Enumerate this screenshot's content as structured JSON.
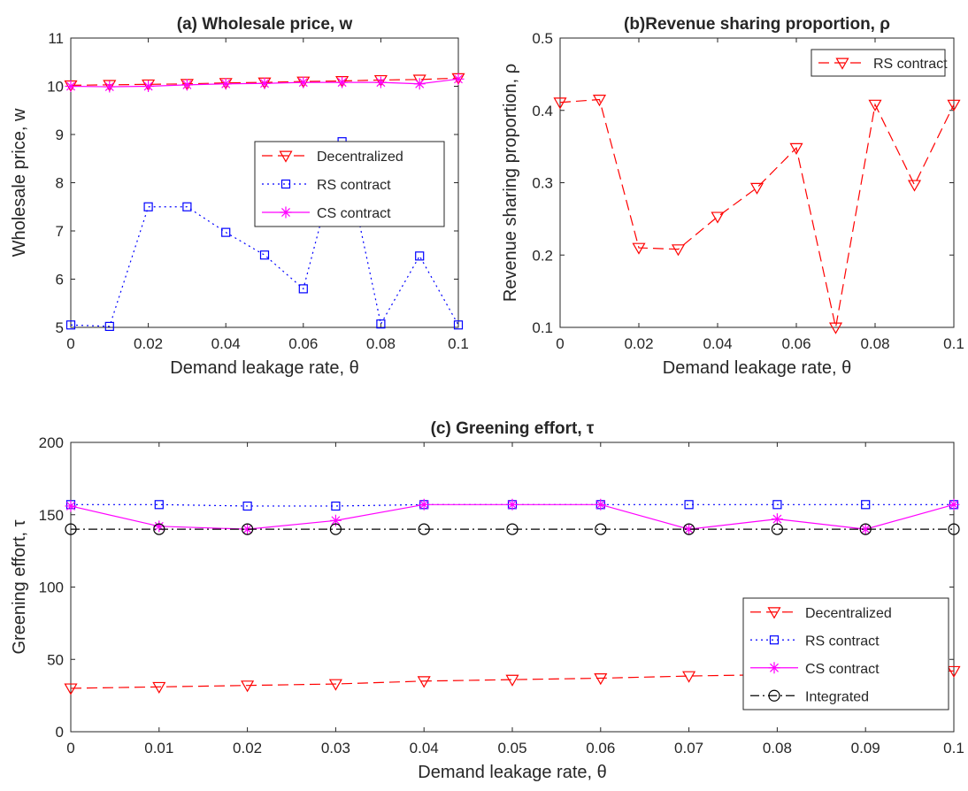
{
  "chart_data": [
    {
      "id": "a",
      "type": "line",
      "title": "(a) Wholesale price, w",
      "xlabel": "Demand leakage rate, θ",
      "ylabel": "Wholesale price, w",
      "xlim": [
        0,
        0.1
      ],
      "ylim": [
        5,
        11
      ],
      "xticks": [
        0,
        0.02,
        0.04,
        0.06,
        0.08,
        0.1
      ],
      "xtick_labels": [
        "0",
        "0.02",
        "0.04",
        "0.06",
        "0.08",
        "0.1"
      ],
      "yticks": [
        5,
        6,
        7,
        8,
        9,
        10,
        11
      ],
      "ytick_labels": [
        "5",
        "6",
        "7",
        "8",
        "9",
        "10",
        "11"
      ],
      "x": [
        0,
        0.01,
        0.02,
        0.03,
        0.04,
        0.05,
        0.06,
        0.07,
        0.08,
        0.09,
        0.1
      ],
      "legend_position": "center-right",
      "series": [
        {
          "name": "Decentralized",
          "color": "#ff0000",
          "dash": "dashed",
          "marker": "triangle-down",
          "values": [
            10.02,
            10.03,
            10.04,
            10.05,
            10.07,
            10.08,
            10.1,
            10.11,
            10.13,
            10.14,
            10.17
          ]
        },
        {
          "name": "RS contract",
          "color": "#0000ff",
          "dash": "dotted",
          "marker": "square",
          "values": [
            5.05,
            5.02,
            7.5,
            7.5,
            6.97,
            6.5,
            5.8,
            8.85,
            5.07,
            6.48,
            5.05
          ]
        },
        {
          "name": "CS contract",
          "color": "#ff00ff",
          "dash": "solid",
          "marker": "asterisk",
          "values": [
            10.0,
            9.99,
            10.0,
            10.03,
            10.05,
            10.06,
            10.08,
            10.08,
            10.08,
            10.05,
            10.15
          ]
        }
      ]
    },
    {
      "id": "b",
      "type": "line",
      "title": "(b)Revenue sharing proportion, ρ",
      "xlabel": "Demand leakage rate, θ",
      "ylabel": "Revenue sharing proportion, ρ",
      "xlim": [
        0,
        0.1
      ],
      "ylim": [
        0.1,
        0.5
      ],
      "xticks": [
        0,
        0.02,
        0.04,
        0.06,
        0.08,
        0.1
      ],
      "xtick_labels": [
        "0",
        "0.02",
        "0.04",
        "0.06",
        "0.08",
        "0.1"
      ],
      "yticks": [
        0.1,
        0.2,
        0.3,
        0.4,
        0.5
      ],
      "ytick_labels": [
        "0.1",
        "0.2",
        "0.3",
        "0.4",
        "0.5"
      ],
      "x": [
        0,
        0.01,
        0.02,
        0.03,
        0.04,
        0.05,
        0.06,
        0.07,
        0.08,
        0.09,
        0.1
      ],
      "legend_position": "top-right",
      "series": [
        {
          "name": "RS contract",
          "color": "#ff0000",
          "dash": "dashed",
          "marker": "triangle-down",
          "values": [
            0.411,
            0.415,
            0.21,
            0.208,
            0.253,
            0.293,
            0.348,
            0.1,
            0.408,
            0.297,
            0.408
          ]
        }
      ]
    },
    {
      "id": "c",
      "type": "line",
      "title": "(c) Greening effort, τ",
      "xlabel": "Demand leakage rate, θ",
      "ylabel": "Greening effort, τ",
      "xlim": [
        0,
        0.1
      ],
      "ylim": [
        0,
        200
      ],
      "xticks": [
        0,
        0.01,
        0.02,
        0.03,
        0.04,
        0.05,
        0.06,
        0.07,
        0.08,
        0.09,
        0.1
      ],
      "xtick_labels": [
        "0",
        "0.01",
        "0.02",
        "0.03",
        "0.04",
        "0.05",
        "0.06",
        "0.07",
        "0.08",
        "0.09",
        "0.1"
      ],
      "yticks": [
        0,
        50,
        100,
        150,
        200
      ],
      "ytick_labels": [
        "0",
        "50",
        "100",
        "150",
        "200"
      ],
      "x": [
        0,
        0.01,
        0.02,
        0.03,
        0.04,
        0.05,
        0.06,
        0.07,
        0.08,
        0.09,
        0.1
      ],
      "legend_position": "bottom-right",
      "series": [
        {
          "name": "Decentralized",
          "color": "#ff0000",
          "dash": "dashed",
          "marker": "triangle-down",
          "values": [
            30,
            31,
            32,
            33,
            35,
            36,
            37,
            38.5,
            39.5,
            40.5,
            42
          ]
        },
        {
          "name": "RS contract",
          "color": "#0000ff",
          "dash": "dotted",
          "marker": "square",
          "values": [
            157,
            157,
            156,
            156,
            157,
            157,
            157,
            157,
            157,
            157,
            157
          ]
        },
        {
          "name": "CS contract",
          "color": "#ff00ff",
          "dash": "solid",
          "marker": "asterisk",
          "values": [
            156,
            142,
            140,
            146,
            157,
            157,
            157,
            140,
            147,
            140,
            157
          ]
        },
        {
          "name": "Integrated",
          "color": "#000000",
          "dash": "dashdot",
          "marker": "circle",
          "values": [
            140,
            140,
            140,
            140,
            140,
            140,
            140,
            140,
            140,
            140,
            140
          ]
        }
      ]
    }
  ]
}
